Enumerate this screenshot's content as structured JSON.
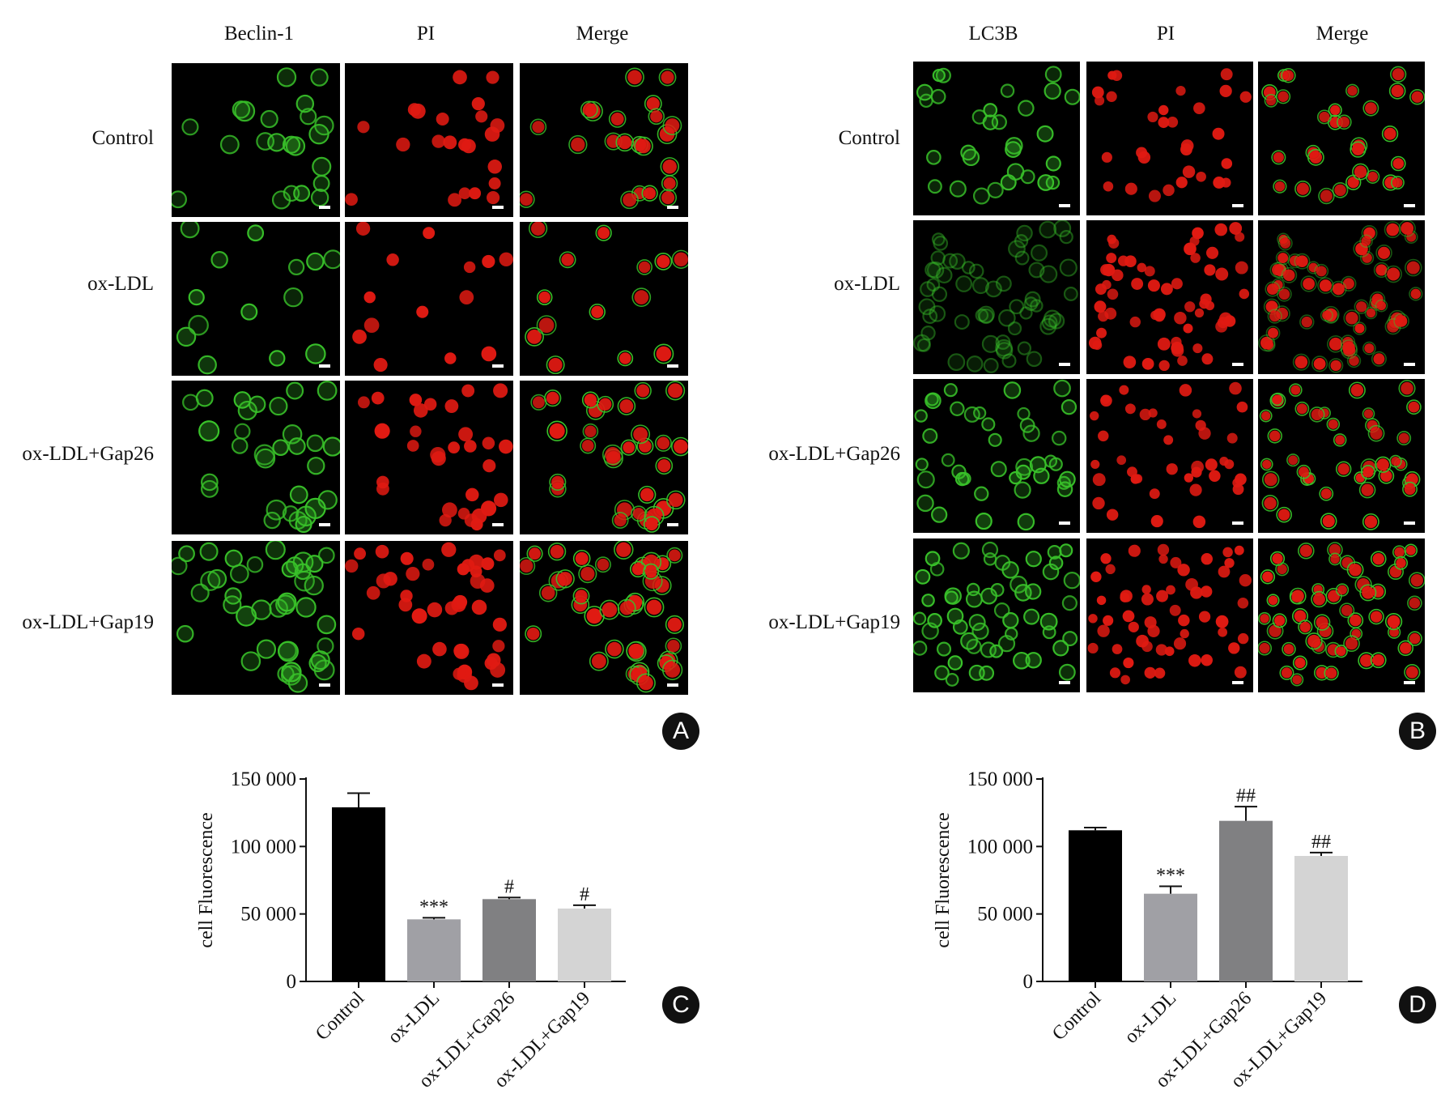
{
  "panel_A": {
    "letter": "A",
    "columns": [
      "Beclin-1",
      "PI",
      "Merge"
    ],
    "rows": [
      "Control",
      "ox-LDL",
      "ox-LDL+Gap26",
      "ox-LDL+Gap19"
    ]
  },
  "panel_B": {
    "letter": "B",
    "columns": [
      "LC3B",
      "PI",
      "Merge"
    ],
    "rows": [
      "Control",
      "ox-LDL",
      "ox-LDL+Gap26",
      "ox-LDL+Gap19"
    ]
  },
  "colors": {
    "green_stain": "#39c22a",
    "red_stain": "#e01a12",
    "bar_control": "#000000",
    "bar_oxldl": "#a0a0a5",
    "bar_gap26": "#808082",
    "bar_gap19": "#d4d4d4"
  },
  "chart_data": [
    {
      "panel": "C",
      "type": "bar",
      "categories": [
        "Control",
        "ox-LDL",
        "ox-LDL+Gap26",
        "ox-LDL+Gap19"
      ],
      "values": [
        129000,
        46000,
        61000,
        54000
      ],
      "errors": [
        10500,
        1200,
        1200,
        2500
      ],
      "annotations": [
        "",
        "***",
        "#",
        "#"
      ],
      "ylabel": "cell Fluorescence",
      "ylim": [
        0,
        150000
      ],
      "yticks": [
        0,
        50000,
        100000,
        150000
      ],
      "ytick_labels": [
        "0",
        "50 000",
        "100 000",
        "150 000"
      ]
    },
    {
      "panel": "D",
      "type": "bar",
      "categories": [
        "Control",
        "ox-LDL",
        "ox-LDL+Gap26",
        "ox-LDL+Gap19"
      ],
      "values": [
        112000,
        65000,
        119000,
        93000
      ],
      "errors": [
        2000,
        5500,
        10500,
        2500
      ],
      "annotations": [
        "",
        "***",
        "##",
        "##"
      ],
      "ylabel": "cell Fluorescence",
      "ylim": [
        0,
        150000
      ],
      "yticks": [
        0,
        50000,
        100000,
        150000
      ],
      "ytick_labels": [
        "0",
        "50 000",
        "100 000",
        "150 000"
      ]
    }
  ]
}
